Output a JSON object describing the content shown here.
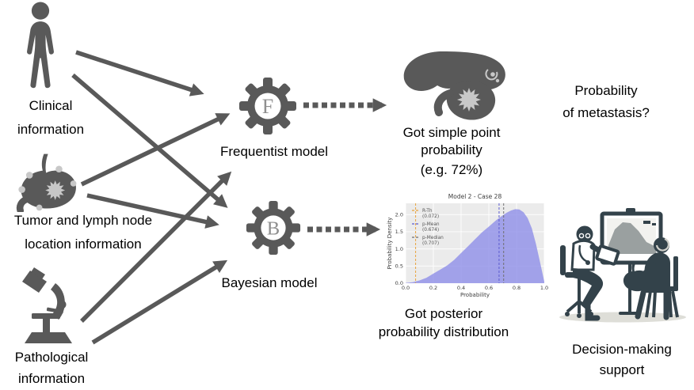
{
  "sources": [
    {
      "id": "clinical",
      "icon": "person-icon",
      "lines": [
        "Clinical",
        "information"
      ]
    },
    {
      "id": "tumor",
      "icon": "stomach-icon",
      "lines": [
        "Tumor and lymph node",
        "location information"
      ]
    },
    {
      "id": "pathological",
      "icon": "microscope-icon",
      "lines": [
        "Pathological",
        "information"
      ]
    }
  ],
  "models": [
    {
      "id": "frequentist",
      "letter": "F",
      "label": "Frequentist model"
    },
    {
      "id": "bayesian",
      "letter": "B",
      "label": "Bayesian model"
    }
  ],
  "outputs": {
    "point": {
      "lines": [
        "Got simple point",
        "probability"
      ],
      "example": "(e.g. 72%)"
    },
    "posterior": {
      "lines": [
        "Got posterior",
        "probability distribution"
      ]
    }
  },
  "question": {
    "lines": [
      "Probability",
      "of metastasis?"
    ]
  },
  "support": {
    "lines": [
      "Decision-making",
      "support"
    ]
  },
  "colors": {
    "diagram_gray": "#595959",
    "tumor_light": "#c8c8c8",
    "illustration_dark": "#33424a",
    "text": "#000000"
  },
  "chart_data": {
    "type": "area",
    "title": "Model 2 - Case 28",
    "xlabel": "Probability",
    "ylabel": "Probability Density",
    "xlim": [
      0.0,
      1.0
    ],
    "ylim": [
      0.0,
      2.33
    ],
    "xticks": [
      0.0,
      0.2,
      0.4,
      0.6,
      0.8,
      1.0
    ],
    "yticks": [
      0.0,
      0.5,
      1.0,
      1.5,
      2.0
    ],
    "grid": true,
    "background": "#ebebeb",
    "legend_position": "upper left",
    "series": [
      {
        "name": "posterior density",
        "fill": "#8f8fe8",
        "x": [
          0.0,
          0.05,
          0.1,
          0.15,
          0.2,
          0.25,
          0.3,
          0.35,
          0.4,
          0.45,
          0.5,
          0.55,
          0.6,
          0.65,
          0.7,
          0.73,
          0.76,
          0.79,
          0.82,
          0.85,
          0.88,
          0.91,
          0.94,
          0.97,
          1.0
        ],
        "y": [
          0.01,
          0.03,
          0.08,
          0.16,
          0.28,
          0.4,
          0.52,
          0.68,
          0.88,
          1.08,
          1.28,
          1.48,
          1.65,
          1.83,
          1.98,
          2.06,
          2.12,
          2.16,
          2.15,
          2.07,
          1.9,
          1.6,
          1.15,
          0.6,
          0.05
        ]
      }
    ],
    "vlines": [
      {
        "name": "R-Th",
        "value": 0.072,
        "color": "#e8a33d",
        "style": "dashed"
      },
      {
        "name": "p-Mean",
        "value": 0.674,
        "color": "#5c5cd0",
        "style": "dashed"
      },
      {
        "name": "p-Median",
        "value": 0.707,
        "color": "#707070",
        "style": "dashed"
      }
    ]
  }
}
